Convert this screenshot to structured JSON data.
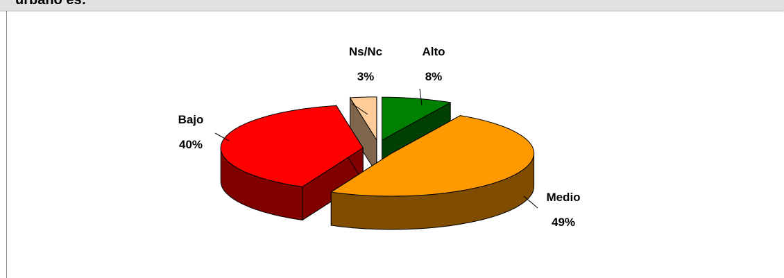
{
  "chart_data": {
    "type": "pie",
    "title": "urbano es:",
    "categories": [
      "Alto",
      "Medio",
      "Bajo",
      "Ns/Nc"
    ],
    "values": [
      8,
      49,
      40,
      3
    ],
    "value_labels": [
      "8%",
      "49%",
      "40%",
      "3%"
    ],
    "colors": [
      "#008000",
      "#ff9900",
      "#ff0000",
      "#ffcc99"
    ]
  }
}
